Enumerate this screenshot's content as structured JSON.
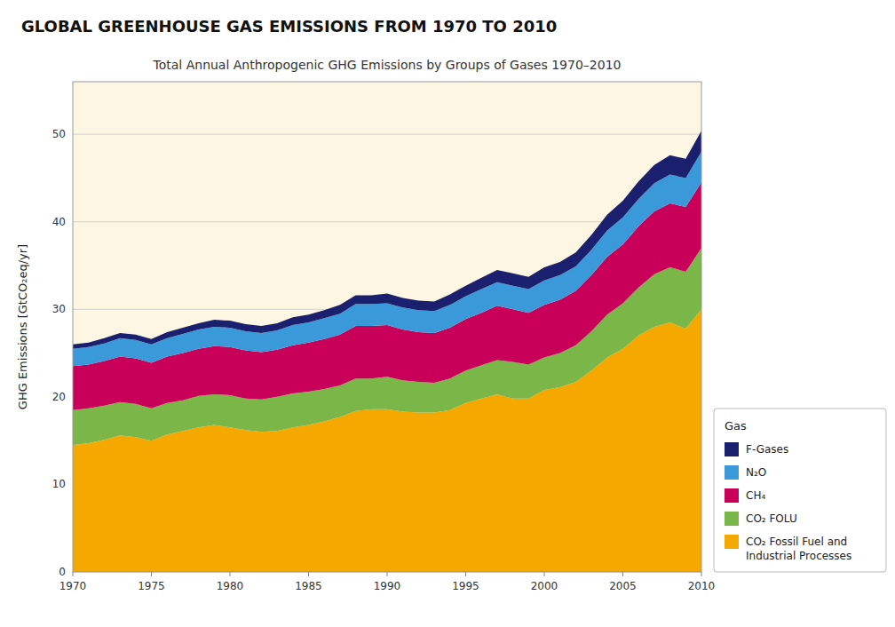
{
  "chart_data": {
    "type": "area",
    "stacked": true,
    "title": "GLOBAL GREENHOUSE GAS EMISSIONS FROM 1970 TO 2010",
    "subtitle": "Total Annual Anthropogenic GHG Emissions by Groups of Gases 1970–2010",
    "y_label": "GHG Emissions [GtCO₂eq/yr]",
    "x": [
      1970,
      1971,
      1972,
      1973,
      1974,
      1975,
      1976,
      1977,
      1978,
      1979,
      1980,
      1981,
      1982,
      1983,
      1984,
      1985,
      1986,
      1987,
      1988,
      1989,
      1990,
      1991,
      1992,
      1993,
      1994,
      1995,
      1996,
      1997,
      1998,
      1999,
      2000,
      2001,
      2002,
      2003,
      2004,
      2005,
      2006,
      2007,
      2008,
      2009,
      2010
    ],
    "series": [
      {
        "name": "CO₂ Fossil Fuel and\nIndustrial Processes",
        "color": "#F5A800",
        "values": [
          14.5,
          14.7,
          15.1,
          15.6,
          15.4,
          15.0,
          15.7,
          16.1,
          16.5,
          16.8,
          16.5,
          16.2,
          16.0,
          16.1,
          16.5,
          16.8,
          17.2,
          17.7,
          18.4,
          18.6,
          18.6,
          18.3,
          18.2,
          18.2,
          18.5,
          19.3,
          19.8,
          20.3,
          19.8,
          19.8,
          20.8,
          21.1,
          21.7,
          23.0,
          24.5,
          25.5,
          27.0,
          28.0,
          28.5,
          27.8,
          30.0
        ]
      },
      {
        "name": "CO₂ FOLU",
        "color": "#7AB648",
        "values": [
          4.0,
          4.0,
          3.9,
          3.8,
          3.8,
          3.7,
          3.6,
          3.5,
          3.6,
          3.5,
          3.7,
          3.6,
          3.7,
          3.9,
          3.9,
          3.8,
          3.7,
          3.6,
          3.7,
          3.5,
          3.7,
          3.6,
          3.5,
          3.4,
          3.6,
          3.7,
          3.8,
          3.9,
          4.2,
          3.9,
          3.7,
          3.9,
          4.2,
          4.5,
          4.9,
          5.2,
          5.5,
          6.0,
          6.3,
          6.5,
          7.0
        ]
      },
      {
        "name": "CH₄",
        "color": "#C8005A",
        "values": [
          5.0,
          5.0,
          5.1,
          5.2,
          5.2,
          5.2,
          5.3,
          5.4,
          5.4,
          5.5,
          5.5,
          5.5,
          5.4,
          5.4,
          5.5,
          5.6,
          5.7,
          5.8,
          6.0,
          6.0,
          5.9,
          5.8,
          5.7,
          5.7,
          5.8,
          5.9,
          6.0,
          6.2,
          6.0,
          5.9,
          6.0,
          6.1,
          6.2,
          6.4,
          6.6,
          6.7,
          7.0,
          7.2,
          7.3,
          7.4,
          7.5
        ]
      },
      {
        "name": "N₂O",
        "color": "#3A9AD9",
        "values": [
          2.0,
          2.0,
          2.0,
          2.1,
          2.1,
          2.1,
          2.1,
          2.2,
          2.2,
          2.2,
          2.2,
          2.2,
          2.2,
          2.2,
          2.3,
          2.3,
          2.4,
          2.4,
          2.5,
          2.5,
          2.5,
          2.5,
          2.5,
          2.5,
          2.6,
          2.6,
          2.7,
          2.7,
          2.7,
          2.7,
          2.8,
          2.8,
          2.8,
          2.9,
          3.0,
          3.1,
          3.1,
          3.2,
          3.3,
          3.3,
          3.5
        ]
      },
      {
        "name": "F-Gases",
        "color": "#1A1F6E",
        "values": [
          0.5,
          0.5,
          0.6,
          0.6,
          0.6,
          0.6,
          0.7,
          0.7,
          0.7,
          0.8,
          0.8,
          0.8,
          0.8,
          0.8,
          0.9,
          0.9,
          0.9,
          1.0,
          1.0,
          1.0,
          1.1,
          1.1,
          1.1,
          1.1,
          1.2,
          1.2,
          1.3,
          1.4,
          1.4,
          1.4,
          1.5,
          1.5,
          1.6,
          1.7,
          1.8,
          1.9,
          2.0,
          2.1,
          2.2,
          2.2,
          2.4
        ]
      }
    ],
    "legend": "lower right",
    "legend_title": "Gas",
    "grid": true,
    "xlim": [
      1970,
      2010
    ],
    "xticks": [
      1970,
      1975,
      1980,
      1985,
      1990,
      1995,
      2000,
      2005,
      2010
    ],
    "ylim": [
      0,
      56
    ],
    "yticks": [
      0,
      10,
      20,
      30,
      40,
      50
    ]
  }
}
